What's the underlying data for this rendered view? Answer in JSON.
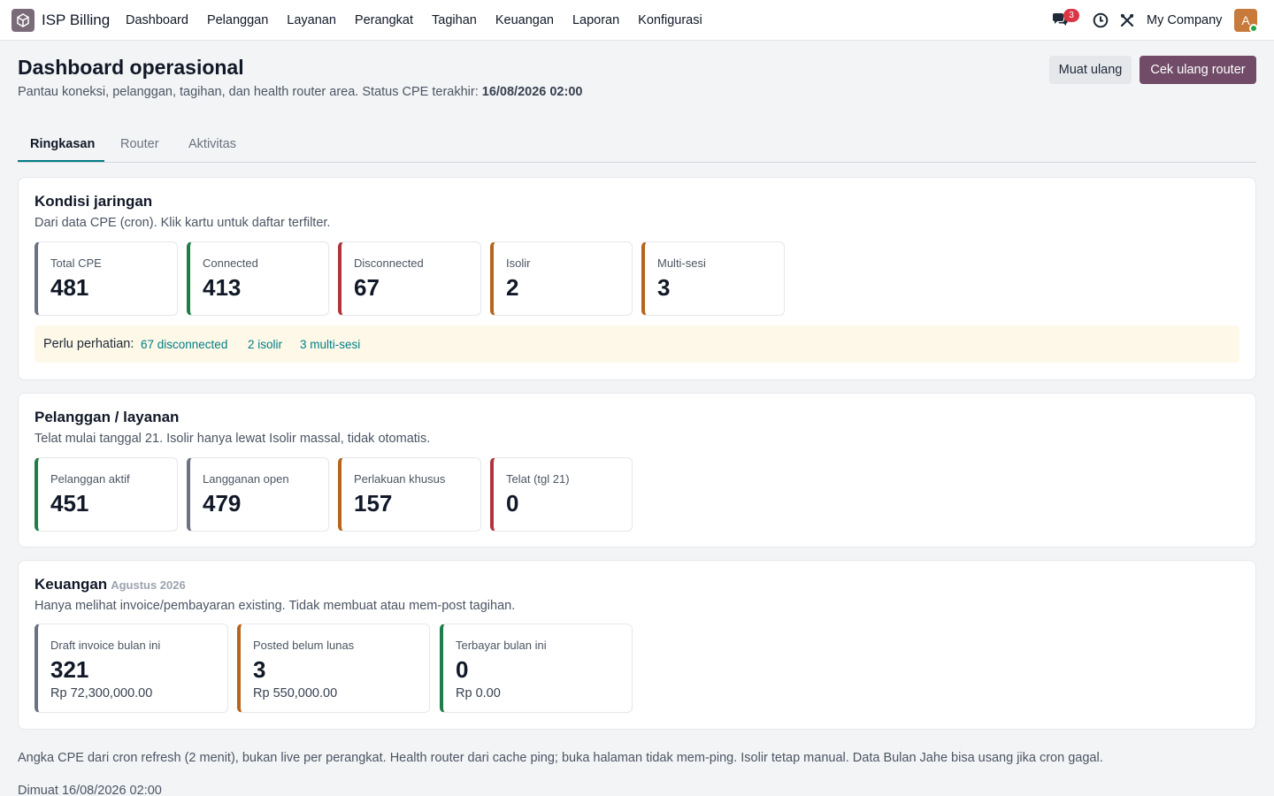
{
  "app": {
    "name": "ISP Billing"
  },
  "nav": [
    "Dashboard",
    "Pelanggan",
    "Layanan",
    "Perangkat",
    "Tagihan",
    "Keuangan",
    "Laporan",
    "Konfigurasi"
  ],
  "topbar": {
    "messages_count": "3",
    "company": "My Company",
    "avatar_initial": "A"
  },
  "header": {
    "title": "Dashboard operasional",
    "subtitle": "Pantau koneksi, pelanggan, tagihan, dan health router area. Status CPE terakhir:",
    "last_status": "16/08/2026 02:00",
    "reload_label": "Muat ulang",
    "recheck_label": "Cek ulang router"
  },
  "tabs": [
    "Ringkasan",
    "Router",
    "Aktivitas"
  ],
  "network": {
    "title": "Kondisi jaringan",
    "subtitle": "Dari data CPE (cron). Klik kartu untuk daftar terfilter.",
    "cards": [
      {
        "label": "Total CPE",
        "value": "481"
      },
      {
        "label": "Connected",
        "value": "413"
      },
      {
        "label": "Disconnected",
        "value": "67"
      },
      {
        "label": "Isolir",
        "value": "2"
      },
      {
        "label": "Multi-sesi",
        "value": "3"
      }
    ],
    "attention_label": "Perlu perhatian:",
    "attention_links": [
      "67 disconnected",
      "2 isolir",
      "3 multi-sesi"
    ]
  },
  "customers": {
    "title": "Pelanggan / layanan",
    "subtitle": "Telat mulai tanggal 21. Isolir hanya lewat Isolir massal, tidak otomatis.",
    "cards": [
      {
        "label": "Pelanggan aktif",
        "value": "451"
      },
      {
        "label": "Langganan open",
        "value": "479"
      },
      {
        "label": "Perlakuan khusus",
        "value": "157"
      },
      {
        "label": "Telat (tgl 21)",
        "value": "0"
      }
    ]
  },
  "finance": {
    "title": "Keuangan",
    "period": "Agustus 2026",
    "subtitle": "Hanya melihat invoice/pembayaran existing. Tidak membuat atau mem-post tagihan.",
    "cards": [
      {
        "label": "Draft invoice bulan ini",
        "value": "321",
        "amount": "Rp 72,300,000.00"
      },
      {
        "label": "Posted belum lunas",
        "value": "3",
        "amount": "Rp 550,000.00"
      },
      {
        "label": "Terbayar bulan ini",
        "value": "0",
        "amount": "Rp 0.00"
      }
    ]
  },
  "footnote": "Angka CPE dari cron refresh (2 menit), bukan live per perangkat. Health router dari cache ping; buka halaman tidak mem-ping. Isolir tetap manual. Data Bulan Jahe bisa usang jika cron gagal.",
  "loaded_at": "Dimuat 16/08/2026 02:00"
}
